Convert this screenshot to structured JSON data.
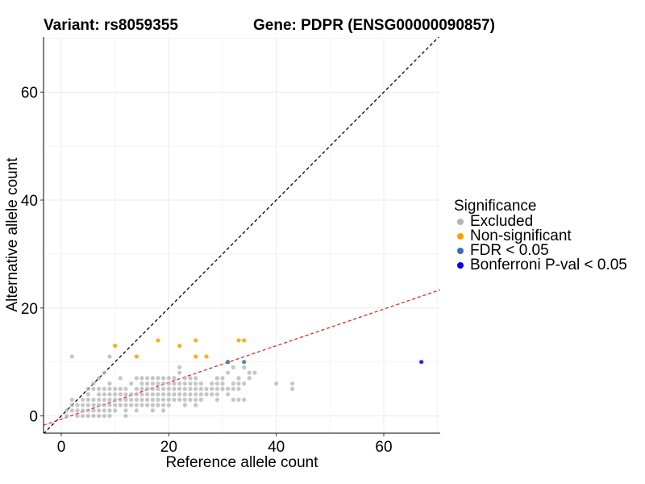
{
  "chart_data": {
    "type": "scatter",
    "title_left": "Variant: rs8059355",
    "title_right": "Gene: PDPR (ENSG00000090857)",
    "xlabel": "Reference allele count",
    "ylabel": "Alternative allele count",
    "xlim": [
      -3.3,
      70.5
    ],
    "ylim": [
      -3.2,
      70.2
    ],
    "xticks": [
      0,
      20,
      40,
      60
    ],
    "yticks": [
      0,
      20,
      40,
      60
    ],
    "grid": true,
    "legend": {
      "title": "Significance",
      "placement": "right",
      "entries": [
        {
          "label": "Excluded",
          "color": "#b3b3b3"
        },
        {
          "label": "Non-significant",
          "color": "#ff9e00"
        },
        {
          "label": "FDR < 0.05",
          "color": "#3a6fae"
        },
        {
          "label": "Bonferroni P-val < 0.05",
          "color": "#0000ee"
        }
      ]
    },
    "reference_lines": [
      {
        "name": "identity",
        "slope": 1,
        "intercept": 0,
        "color": "#000000",
        "style": "dashed"
      },
      {
        "name": "fit",
        "slope": 0.34,
        "intercept": -0.6,
        "color": "#e8222a",
        "style": "dashed"
      }
    ],
    "series": [
      {
        "name": "Excluded",
        "color": "#b3b3b3",
        "points": [
          [
            2,
            11
          ],
          [
            9,
            11
          ],
          [
            2,
            3
          ],
          [
            2,
            2
          ],
          [
            2,
            1
          ],
          [
            1,
            1
          ],
          [
            1,
            0
          ],
          [
            3,
            0
          ],
          [
            3,
            1
          ],
          [
            3,
            2
          ],
          [
            4,
            0
          ],
          [
            4,
            1
          ],
          [
            4,
            2
          ],
          [
            4,
            3
          ],
          [
            5,
            0
          ],
          [
            5,
            1
          ],
          [
            5,
            2
          ],
          [
            5,
            3
          ],
          [
            5,
            4
          ],
          [
            5,
            5
          ],
          [
            6,
            0
          ],
          [
            6,
            1
          ],
          [
            6,
            2
          ],
          [
            6,
            3
          ],
          [
            6,
            5
          ],
          [
            6,
            6
          ],
          [
            7,
            0
          ],
          [
            7,
            1
          ],
          [
            7,
            2
          ],
          [
            7,
            3
          ],
          [
            7,
            4
          ],
          [
            7,
            5
          ],
          [
            7,
            7
          ],
          [
            8,
            0
          ],
          [
            8,
            1
          ],
          [
            8,
            2
          ],
          [
            8,
            3
          ],
          [
            8,
            4
          ],
          [
            8,
            5
          ],
          [
            8,
            8
          ],
          [
            9,
            0
          ],
          [
            9,
            1
          ],
          [
            9,
            2
          ],
          [
            9,
            3
          ],
          [
            9,
            4
          ],
          [
            9,
            5
          ],
          [
            9,
            6
          ],
          [
            10,
            1
          ],
          [
            10,
            2
          ],
          [
            10,
            3
          ],
          [
            10,
            4
          ],
          [
            10,
            5
          ],
          [
            11,
            2
          ],
          [
            11,
            3
          ],
          [
            11,
            4
          ],
          [
            11,
            5
          ],
          [
            11,
            7
          ],
          [
            12,
            0
          ],
          [
            12,
            1
          ],
          [
            12,
            2
          ],
          [
            12,
            3
          ],
          [
            12,
            4
          ],
          [
            12,
            5
          ],
          [
            13,
            2
          ],
          [
            13,
            3
          ],
          [
            13,
            4
          ],
          [
            13,
            6
          ],
          [
            14,
            1
          ],
          [
            14,
            2
          ],
          [
            14,
            3
          ],
          [
            14,
            4
          ],
          [
            14,
            5
          ],
          [
            14,
            7
          ],
          [
            15,
            2
          ],
          [
            15,
            3
          ],
          [
            15,
            4
          ],
          [
            15,
            5
          ],
          [
            15,
            6
          ],
          [
            15,
            7
          ],
          [
            16,
            2
          ],
          [
            16,
            3
          ],
          [
            16,
            4
          ],
          [
            16,
            5
          ],
          [
            16,
            6
          ],
          [
            16,
            7
          ],
          [
            17,
            1
          ],
          [
            17,
            2
          ],
          [
            17,
            3
          ],
          [
            17,
            4
          ],
          [
            17,
            5
          ],
          [
            17,
            6
          ],
          [
            17,
            7
          ],
          [
            18,
            2
          ],
          [
            18,
            3
          ],
          [
            18,
            4
          ],
          [
            18,
            5
          ],
          [
            18,
            6
          ],
          [
            18,
            7
          ],
          [
            19,
            1
          ],
          [
            19,
            2
          ],
          [
            19,
            3
          ],
          [
            19,
            4
          ],
          [
            19,
            5
          ],
          [
            19,
            6
          ],
          [
            19,
            7
          ],
          [
            20,
            2
          ],
          [
            20,
            3
          ],
          [
            20,
            4
          ],
          [
            20,
            5
          ],
          [
            20,
            6
          ],
          [
            20,
            7
          ],
          [
            21,
            3
          ],
          [
            21,
            4
          ],
          [
            21,
            5
          ],
          [
            21,
            6
          ],
          [
            21,
            7
          ],
          [
            22,
            3
          ],
          [
            22,
            4
          ],
          [
            22,
            5
          ],
          [
            22,
            6
          ],
          [
            22,
            8
          ],
          [
            22,
            9
          ],
          [
            23,
            2
          ],
          [
            23,
            3
          ],
          [
            23,
            4
          ],
          [
            23,
            5
          ],
          [
            23,
            6
          ],
          [
            23,
            7
          ],
          [
            24,
            3
          ],
          [
            24,
            4
          ],
          [
            24,
            5
          ],
          [
            24,
            6
          ],
          [
            24,
            7
          ],
          [
            25,
            2
          ],
          [
            25,
            3
          ],
          [
            25,
            4
          ],
          [
            25,
            5
          ],
          [
            25,
            6
          ],
          [
            25,
            7
          ],
          [
            26,
            3
          ],
          [
            26,
            4
          ],
          [
            26,
            5
          ],
          [
            26,
            6
          ],
          [
            27,
            4
          ],
          [
            27,
            5
          ],
          [
            28,
            4
          ],
          [
            28,
            5
          ],
          [
            28,
            6
          ],
          [
            29,
            3
          ],
          [
            29,
            4
          ],
          [
            29,
            5
          ],
          [
            29,
            6
          ],
          [
            29,
            7
          ],
          [
            30,
            5
          ],
          [
            30,
            6
          ],
          [
            30,
            7
          ],
          [
            31,
            4
          ],
          [
            31,
            5
          ],
          [
            31,
            8
          ],
          [
            31,
            10
          ],
          [
            32,
            3
          ],
          [
            32,
            5
          ],
          [
            32,
            6
          ],
          [
            32,
            9
          ],
          [
            33,
            3
          ],
          [
            33,
            5
          ],
          [
            33,
            6
          ],
          [
            33,
            7
          ],
          [
            34,
            3
          ],
          [
            34,
            6
          ],
          [
            34,
            9
          ],
          [
            35,
            7
          ],
          [
            35,
            8
          ],
          [
            36,
            8
          ],
          [
            40,
            6
          ],
          [
            43,
            5
          ],
          [
            43,
            6
          ]
        ]
      },
      {
        "name": "Non-significant",
        "color": "#ff9e00",
        "points": [
          [
            10,
            13
          ],
          [
            14,
            11
          ],
          [
            18,
            14
          ],
          [
            22,
            13
          ],
          [
            25,
            11
          ],
          [
            25,
            14
          ],
          [
            27,
            11
          ],
          [
            33,
            14
          ],
          [
            34,
            14
          ]
        ]
      },
      {
        "name": "FDR < 0.05",
        "color": "#3a6fae",
        "points": [
          [
            31,
            10
          ],
          [
            34,
            10
          ]
        ]
      },
      {
        "name": "Bonferroni P-val < 0.05",
        "color": "#0000ee",
        "points": [
          [
            67,
            10
          ]
        ]
      }
    ]
  }
}
